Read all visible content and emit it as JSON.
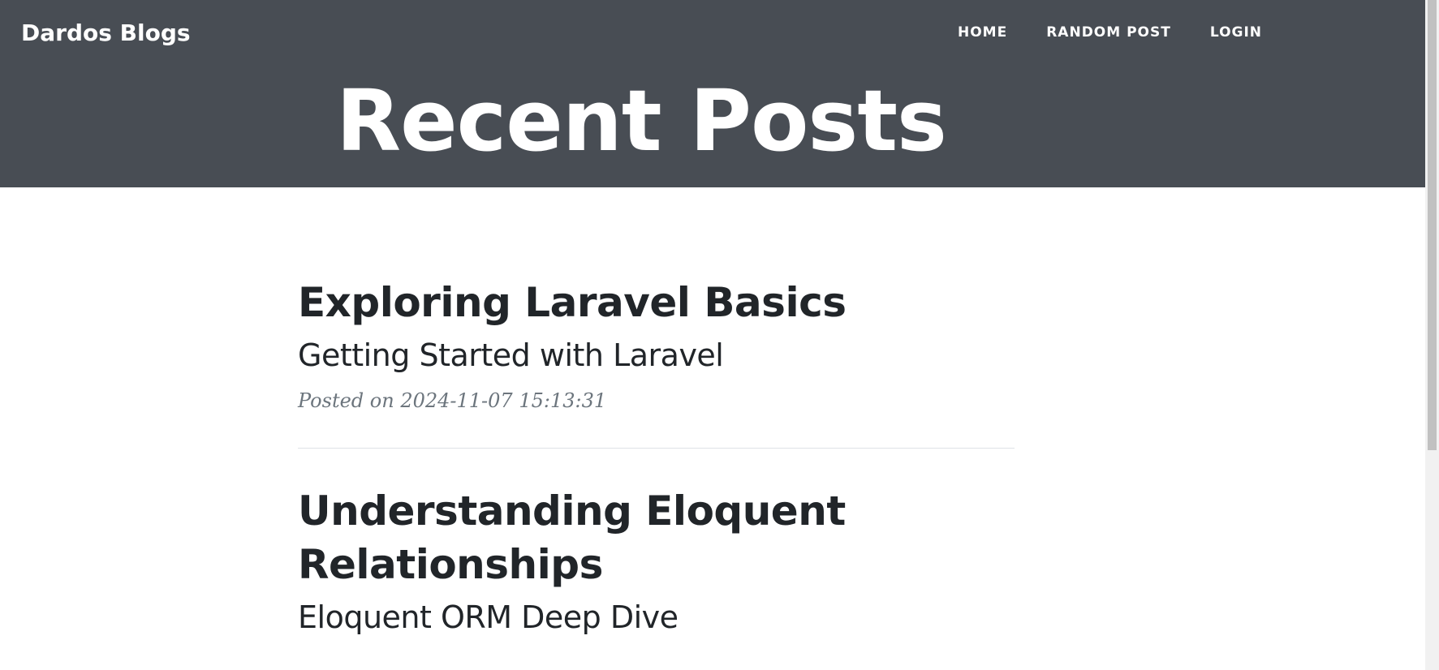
{
  "header": {
    "brand": "Dardos Blogs",
    "nav": [
      {
        "label": "HOME"
      },
      {
        "label": "RANDOM POST"
      },
      {
        "label": "LOGIN"
      }
    ],
    "hero_title": "Recent Posts"
  },
  "colors": {
    "masthead_bg": "#484d54",
    "text_dark": "#212529",
    "meta_gray": "#6c757d"
  },
  "posts": [
    {
      "title": "Exploring Laravel Basics",
      "subtitle": "Getting Started with Laravel",
      "meta": "Posted on 2024-11-07 15:13:31"
    },
    {
      "title": "Understanding Eloquent Relationships",
      "subtitle": "Eloquent ORM Deep Dive"
    }
  ]
}
